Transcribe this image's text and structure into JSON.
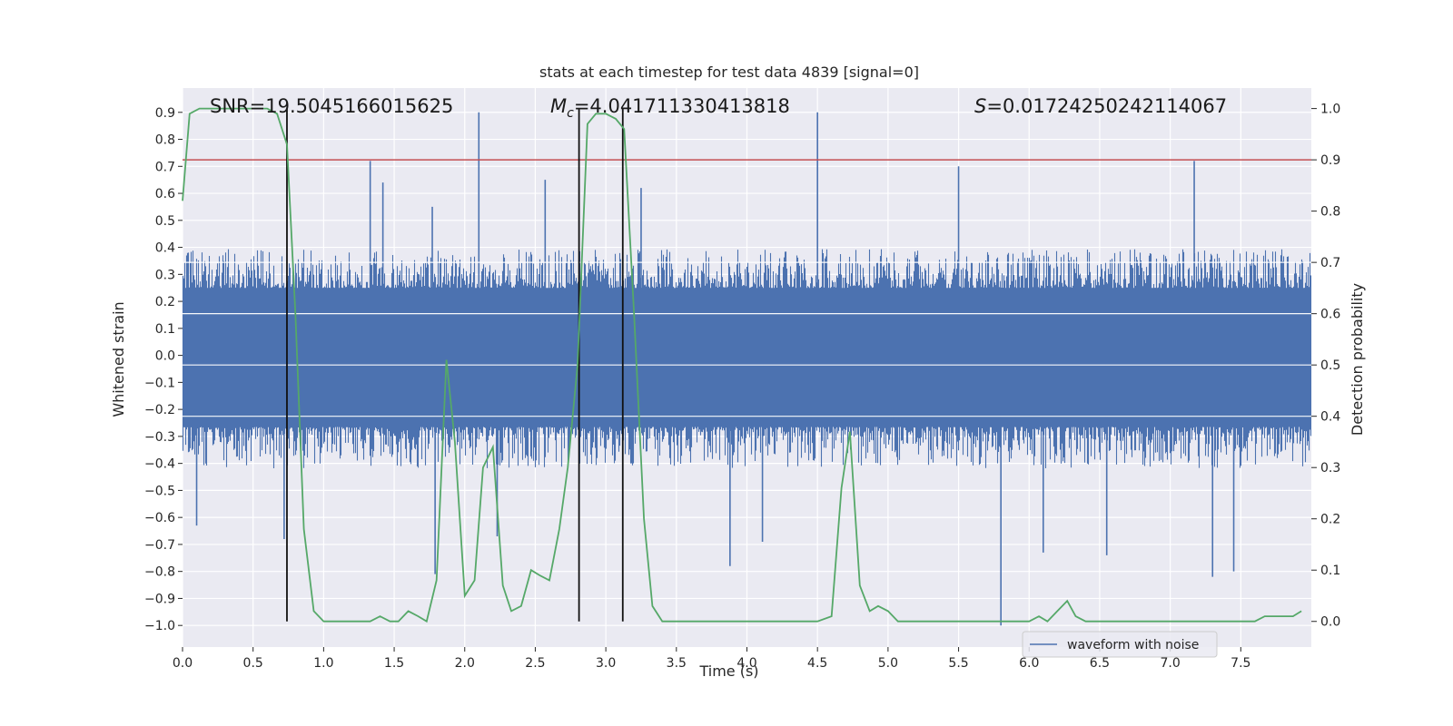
{
  "chart_data": {
    "type": "line",
    "title": "stats at each timestep for test data 4839 [signal=0]",
    "xlabel": "Time (s)",
    "ylabel_left": "Whitened strain",
    "ylabel_right": "Detection probability",
    "xlim": [
      0.0,
      8.0
    ],
    "ylim_left": [
      -1.08,
      0.99
    ],
    "ylim_right": [
      -0.05,
      1.04
    ],
    "xticks": [
      "0.0",
      "0.5",
      "1.0",
      "1.5",
      "2.0",
      "2.5",
      "3.0",
      "3.5",
      "4.0",
      "4.5",
      "5.0",
      "5.5",
      "6.0",
      "6.5",
      "7.0",
      "7.5"
    ],
    "yticks_left": [
      "0.9",
      "0.8",
      "0.7",
      "0.6",
      "0.5",
      "0.4",
      "0.3",
      "0.2",
      "0.1",
      "0.0",
      "−0.1",
      "−0.2",
      "−0.3",
      "−0.4",
      "−0.5",
      "−0.6",
      "−0.7",
      "−0.8",
      "−0.9",
      "−1.0"
    ],
    "yticks_right": [
      "1.0",
      "0.9",
      "0.8",
      "0.7",
      "0.6",
      "0.5",
      "0.4",
      "0.3",
      "0.2",
      "0.1",
      "0.0"
    ],
    "grid": true,
    "legend": {
      "placement": "bottom-right",
      "entries": [
        "waveform with noise"
      ]
    },
    "annotations": {
      "snr": "SNR=19.5045166015625",
      "mc_symbol": "M",
      "mc_sub": "c",
      "mc_value": "=4.041711330413818",
      "s_symbol": "S",
      "s_value": "=0.01724250242114067"
    },
    "threshold_right": 0.9,
    "vertical_markers": [
      0.74,
      2.81,
      3.12
    ],
    "waveform": {
      "name": "waveform with noise",
      "color": "#4c72b0",
      "typical_range": [
        -0.34,
        0.32
      ],
      "spikes": [
        {
          "x": 0.1,
          "y": -0.63
        },
        {
          "x": 0.72,
          "y": -0.68
        },
        {
          "x": 1.33,
          "y": 0.72
        },
        {
          "x": 1.42,
          "y": 0.64
        },
        {
          "x": 1.77,
          "y": 0.55
        },
        {
          "x": 1.79,
          "y": -0.81
        },
        {
          "x": 2.1,
          "y": 0.9
        },
        {
          "x": 2.23,
          "y": -0.67
        },
        {
          "x": 2.57,
          "y": 0.65
        },
        {
          "x": 3.25,
          "y": 0.62
        },
        {
          "x": 3.88,
          "y": -0.78
        },
        {
          "x": 4.11,
          "y": -0.69
        },
        {
          "x": 4.5,
          "y": 0.9
        },
        {
          "x": 5.5,
          "y": 0.7
        },
        {
          "x": 5.8,
          "y": -1.0
        },
        {
          "x": 6.1,
          "y": -0.73
        },
        {
          "x": 6.55,
          "y": -0.74
        },
        {
          "x": 7.17,
          "y": 0.72
        },
        {
          "x": 7.3,
          "y": -0.82
        },
        {
          "x": 7.45,
          "y": -0.8
        }
      ]
    },
    "detection_probability": {
      "color": "#55a868",
      "x": [
        0.0,
        0.05,
        0.12,
        0.2,
        0.3,
        0.4,
        0.5,
        0.6,
        0.67,
        0.74,
        0.8,
        0.86,
        0.93,
        1.0,
        1.07,
        1.14,
        1.2,
        1.27,
        1.33,
        1.4,
        1.47,
        1.53,
        1.6,
        1.67,
        1.73,
        1.8,
        1.87,
        1.93,
        2.0,
        2.07,
        2.13,
        2.2,
        2.27,
        2.33,
        2.4,
        2.47,
        2.53,
        2.6,
        2.67,
        2.73,
        2.8,
        2.87,
        2.93,
        3.0,
        3.07,
        3.13,
        3.2,
        3.27,
        3.33,
        3.4,
        3.5,
        3.6,
        3.7,
        3.8,
        3.9,
        4.0,
        4.1,
        4.2,
        4.3,
        4.4,
        4.5,
        4.6,
        4.67,
        4.73,
        4.8,
        4.87,
        4.93,
        5.0,
        5.07,
        5.13,
        5.2,
        5.3,
        5.4,
        5.5,
        5.6,
        5.7,
        5.8,
        5.9,
        6.0,
        6.07,
        6.13,
        6.2,
        6.27,
        6.33,
        6.4,
        6.5,
        6.6,
        6.7,
        6.8,
        6.9,
        7.0,
        7.1,
        7.2,
        7.3,
        7.4,
        7.5,
        7.6,
        7.67,
        7.73,
        7.8,
        7.87,
        7.93
      ],
      "y": [
        0.82,
        0.99,
        1.0,
        1.0,
        1.0,
        1.0,
        1.0,
        1.0,
        0.99,
        0.93,
        0.6,
        0.18,
        0.02,
        0.0,
        0.0,
        0.0,
        0.0,
        0.0,
        0.0,
        0.01,
        0.0,
        0.0,
        0.02,
        0.01,
        0.0,
        0.08,
        0.51,
        0.35,
        0.05,
        0.08,
        0.3,
        0.34,
        0.07,
        0.02,
        0.03,
        0.1,
        0.09,
        0.08,
        0.18,
        0.3,
        0.5,
        0.97,
        0.99,
        0.99,
        0.98,
        0.96,
        0.6,
        0.2,
        0.03,
        0.0,
        0.0,
        0.0,
        0.0,
        0.0,
        0.0,
        0.0,
        0.0,
        0.0,
        0.0,
        0.0,
        0.0,
        0.01,
        0.26,
        0.37,
        0.07,
        0.02,
        0.03,
        0.02,
        0.0,
        0.0,
        0.0,
        0.0,
        0.0,
        0.0,
        0.0,
        0.0,
        0.0,
        0.0,
        0.0,
        0.01,
        0.0,
        0.02,
        0.04,
        0.01,
        0.0,
        0.0,
        0.0,
        0.0,
        0.0,
        0.0,
        0.0,
        0.0,
        0.0,
        0.0,
        0.0,
        0.0,
        0.0,
        0.01,
        0.01,
        0.01,
        0.01,
        0.02
      ]
    }
  }
}
